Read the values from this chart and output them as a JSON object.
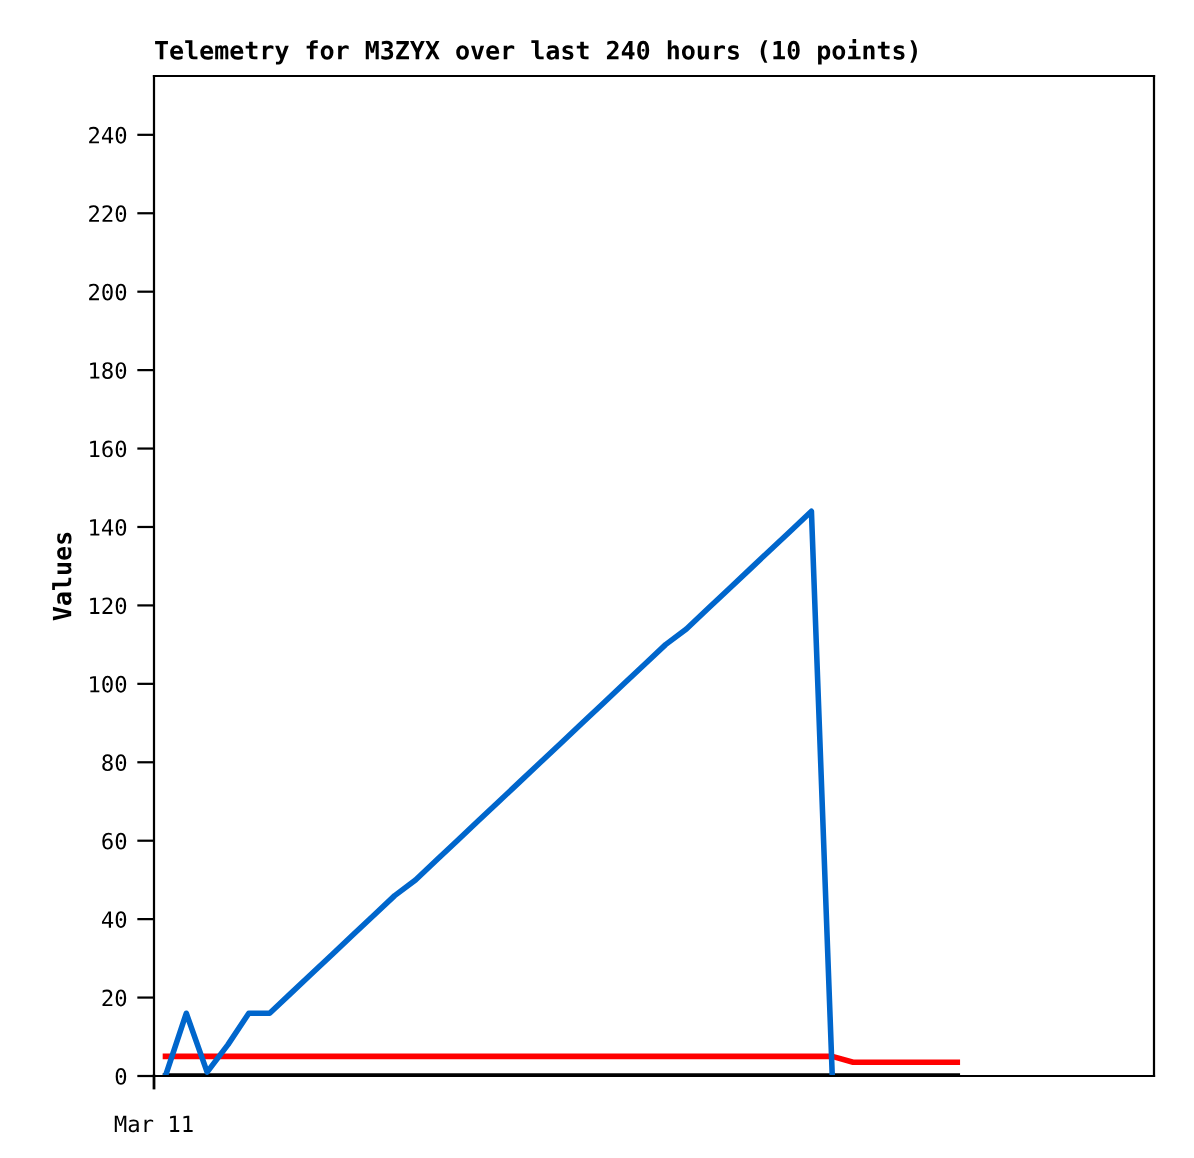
{
  "chart_data": {
    "type": "line",
    "title": "Telemetry for M3ZYX over last 240 hours (10 points)",
    "ylabel": "Values",
    "annotations": [
      "Mar 11"
    ],
    "categories": [
      null,
      null,
      null,
      null,
      null,
      null,
      null,
      null,
      null,
      null,
      null,
      null,
      null,
      null,
      null,
      null,
      null,
      null,
      null,
      null,
      null,
      null,
      null,
      null,
      null,
      null,
      null,
      null,
      null,
      null,
      null,
      null,
      null,
      null,
      null,
      null,
      null,
      null,
      null
    ],
    "ylim": [
      0,
      255
    ],
    "yticks": [
      0,
      20,
      40,
      60,
      80,
      100,
      120,
      140,
      160,
      180,
      200,
      220,
      240
    ],
    "grid": false,
    "legend": false,
    "marker": "none",
    "line_style": "solid",
    "series": [
      {
        "color": "#000000",
        "values": [
          0,
          0,
          0,
          0,
          0,
          0,
          0,
          0,
          0,
          0,
          0,
          0,
          0,
          0,
          0,
          0,
          0,
          0,
          0,
          0,
          0,
          0,
          0,
          0,
          0,
          0,
          0,
          0,
          0,
          0,
          0,
          0,
          0,
          0,
          0,
          0,
          0,
          0,
          0
        ]
      },
      {
        "color": "#ff0000",
        "values": [
          5,
          5,
          5,
          5,
          5,
          5,
          5,
          5,
          5,
          5,
          5,
          5,
          5,
          5,
          5,
          5,
          5,
          5,
          5,
          5,
          5,
          5,
          5,
          5,
          5,
          5,
          5,
          5,
          5,
          5,
          5,
          5,
          5,
          3.5,
          3.5,
          3.5,
          3.5,
          3.5,
          3.5
        ]
      },
      {
        "color": "#0066cc",
        "values": [
          0,
          16,
          1,
          8,
          16,
          16,
          21,
          26,
          31,
          36,
          41,
          46,
          50,
          55,
          60,
          65,
          70,
          75,
          80,
          85,
          90,
          95,
          100,
          105,
          110,
          114,
          119,
          124,
          129,
          134,
          139,
          144,
          0,
          null,
          null,
          null,
          null,
          null,
          null
        ]
      }
    ]
  }
}
